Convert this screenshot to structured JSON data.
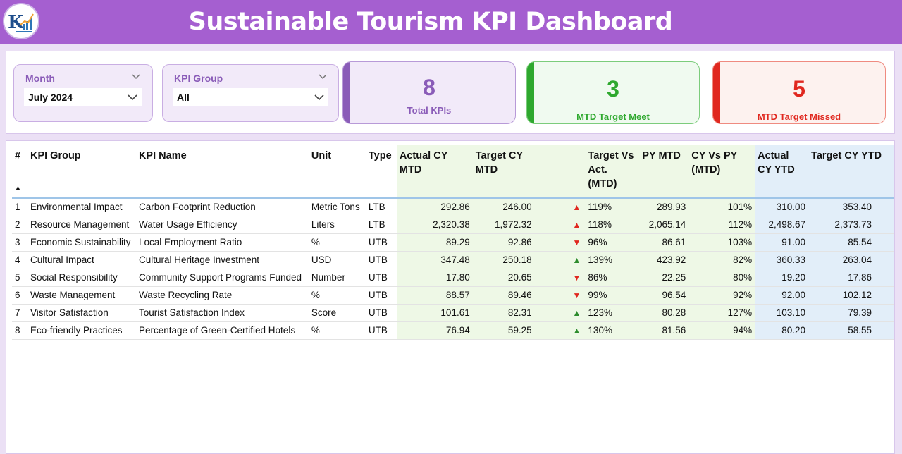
{
  "header": {
    "title": "Sustainable Tourism KPI Dashboard",
    "logo_icon": "bar-chart-logo-icon",
    "bg_color": "#a55fd0"
  },
  "filters": {
    "month": {
      "label": "Month",
      "value": "July 2024"
    },
    "kpi_group": {
      "label": "KPI Group",
      "value": "All"
    }
  },
  "cards": {
    "total": {
      "value": "8",
      "label": "Total KPIs",
      "color": "#8a5cb8"
    },
    "met": {
      "value": "3",
      "label": "MTD Target Meet",
      "color": "#2ea82e"
    },
    "missed": {
      "value": "5",
      "label": "MTD Target Missed",
      "color": "#e0281f"
    }
  },
  "table": {
    "columns": {
      "num": "#",
      "group": "KPI Group",
      "name": "KPI Name",
      "unit": "Unit",
      "type": "Type",
      "actual_mtd": "Actual CY MTD",
      "target_mtd": "Target CY MTD",
      "tva": "Target Vs Act. (MTD)",
      "py_mtd": "PY MTD",
      "cy_vs_py": "CY Vs PY (MTD)",
      "actual_ytd": "Actual CY YTD",
      "target_ytd": "Target CY YTD"
    },
    "sort_icon": "sort-ascending-icon",
    "rows": [
      {
        "num": "1",
        "group": "Environmental Impact",
        "name": "Carbon Footprint Reduction",
        "unit": "Metric Tons",
        "type": "LTB",
        "actual_mtd": "292.86",
        "target_mtd": "246.00",
        "arrow": "▲",
        "status": "down",
        "tva": "119%",
        "py_mtd": "289.93",
        "cy_vs_py": "101%",
        "actual_ytd": "310.00",
        "target_ytd": "353.40"
      },
      {
        "num": "2",
        "group": "Resource Management",
        "name": "Water Usage Efficiency",
        "unit": "Liters",
        "type": "LTB",
        "actual_mtd": "2,320.38",
        "target_mtd": "1,972.32",
        "arrow": "▲",
        "status": "down",
        "tva": "118%",
        "py_mtd": "2,065.14",
        "cy_vs_py": "112%",
        "actual_ytd": "2,498.67",
        "target_ytd": "2,373.73"
      },
      {
        "num": "3",
        "group": "Economic Sustainability",
        "name": "Local Employment Ratio",
        "unit": "%",
        "type": "UTB",
        "actual_mtd": "89.29",
        "target_mtd": "92.86",
        "arrow": "▼",
        "status": "down",
        "tva": "96%",
        "py_mtd": "86.61",
        "cy_vs_py": "103%",
        "actual_ytd": "91.00",
        "target_ytd": "85.54"
      },
      {
        "num": "4",
        "group": "Cultural Impact",
        "name": "Cultural Heritage Investment",
        "unit": "USD",
        "type": "UTB",
        "actual_mtd": "347.48",
        "target_mtd": "250.18",
        "arrow": "▲",
        "status": "up",
        "tva": "139%",
        "py_mtd": "423.92",
        "cy_vs_py": "82%",
        "actual_ytd": "360.33",
        "target_ytd": "263.04"
      },
      {
        "num": "5",
        "group": "Social Responsibility",
        "name": "Community Support Programs Funded",
        "unit": "Number",
        "type": "UTB",
        "actual_mtd": "17.80",
        "target_mtd": "20.65",
        "arrow": "▼",
        "status": "down",
        "tva": "86%",
        "py_mtd": "22.25",
        "cy_vs_py": "80%",
        "actual_ytd": "19.20",
        "target_ytd": "17.86"
      },
      {
        "num": "6",
        "group": "Waste Management",
        "name": "Waste Recycling Rate",
        "unit": "%",
        "type": "UTB",
        "actual_mtd": "88.57",
        "target_mtd": "89.46",
        "arrow": "▼",
        "status": "down",
        "tva": "99%",
        "py_mtd": "96.54",
        "cy_vs_py": "92%",
        "actual_ytd": "92.00",
        "target_ytd": "102.12"
      },
      {
        "num": "7",
        "group": "Visitor Satisfaction",
        "name": "Tourist Satisfaction Index",
        "unit": "Score",
        "type": "UTB",
        "actual_mtd": "101.61",
        "target_mtd": "82.31",
        "arrow": "▲",
        "status": "up",
        "tva": "123%",
        "py_mtd": "80.28",
        "cy_vs_py": "127%",
        "actual_ytd": "103.10",
        "target_ytd": "79.39"
      },
      {
        "num": "8",
        "group": "Eco-friendly Practices",
        "name": "Percentage of Green-Certified Hotels",
        "unit": "%",
        "type": "UTB",
        "actual_mtd": "76.94",
        "target_mtd": "59.25",
        "arrow": "▲",
        "status": "up",
        "tva": "130%",
        "py_mtd": "81.56",
        "cy_vs_py": "94%",
        "actual_ytd": "80.20",
        "target_ytd": "58.55"
      }
    ]
  }
}
